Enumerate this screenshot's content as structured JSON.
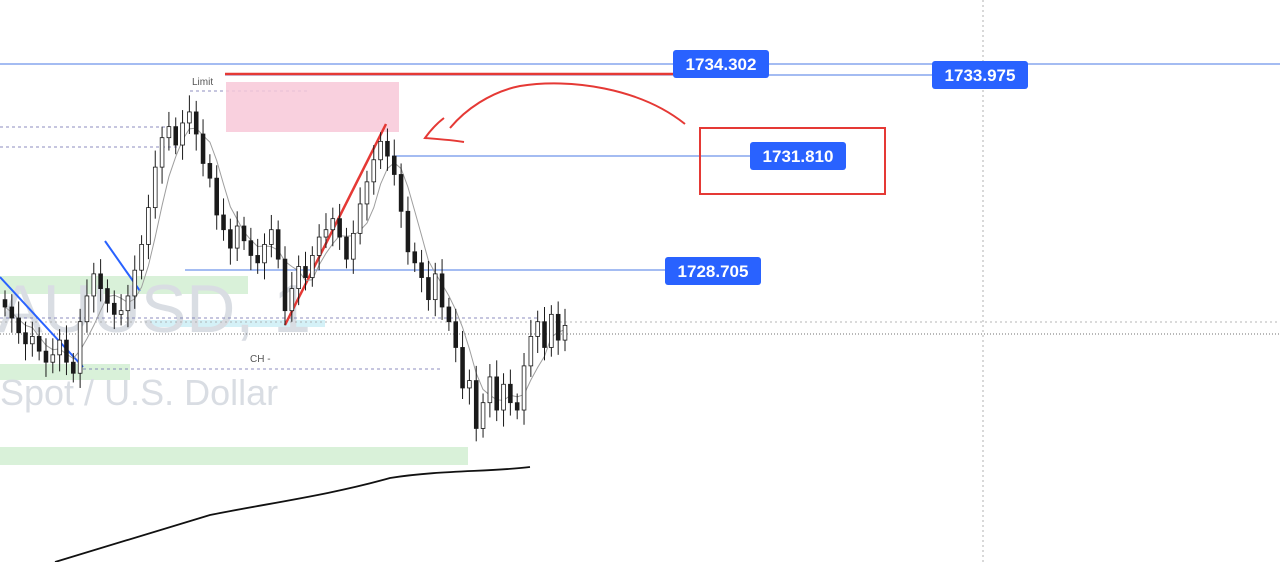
{
  "chart_data": {
    "type": "candlestick",
    "watermark": {
      "symbol": "XAUUSD, 1",
      "description": "Spot / U.S. Dollar"
    },
    "annotations": {
      "limit_label": "Limit",
      "ch_label": "CH -"
    },
    "price_lines": [
      {
        "label": "1734.302",
        "value": 1734.302
      },
      {
        "label": "1733.975",
        "value": 1733.975
      },
      {
        "label": "1731.810",
        "value": 1731.81
      },
      {
        "label": "1728.705",
        "value": 1728.705
      }
    ],
    "colors": {
      "price_tag": "#2962ff",
      "price_line": "#4a78e6",
      "drawing_red": "#e53935",
      "highlight_box": "#f8c8d8",
      "candle": "#1a1a1a",
      "ma": "#9e9e9e",
      "zone_green": "#cfeecf",
      "trend_blue": "#2962ff"
    },
    "close_prices": [
      1727.7,
      1727.4,
      1727.0,
      1726.7,
      1726.9,
      1726.5,
      1726.2,
      1726.4,
      1726.8,
      1726.2,
      1725.9,
      1727.3,
      1728.0,
      1728.6,
      1728.2,
      1727.8,
      1727.5,
      1727.6,
      1728.0,
      1728.7,
      1729.4,
      1730.4,
      1731.5,
      1732.3,
      1732.6,
      1732.1,
      1732.7,
      1733.0,
      1732.4,
      1731.6,
      1731.2,
      1730.2,
      1729.8,
      1729.3,
      1729.9,
      1729.5,
      1729.1,
      1728.9,
      1729.4,
      1729.8,
      1729.0,
      1727.6,
      1728.2,
      1728.8,
      1728.5,
      1729.1,
      1729.6,
      1729.8,
      1730.1,
      1729.6,
      1729.0,
      1729.7,
      1730.5,
      1731.1,
      1731.7,
      1732.2,
      1731.8,
      1731.3,
      1730.3,
      1729.2,
      1728.9,
      1728.5,
      1727.9,
      1728.6,
      1727.7,
      1727.3,
      1726.6,
      1725.5,
      1725.7,
      1724.4,
      1725.1,
      1725.8,
      1724.9,
      1725.6,
      1725.1,
      1724.9,
      1726.1,
      1726.9,
      1727.3,
      1726.6,
      1727.5,
      1726.8,
      1727.2
    ]
  }
}
